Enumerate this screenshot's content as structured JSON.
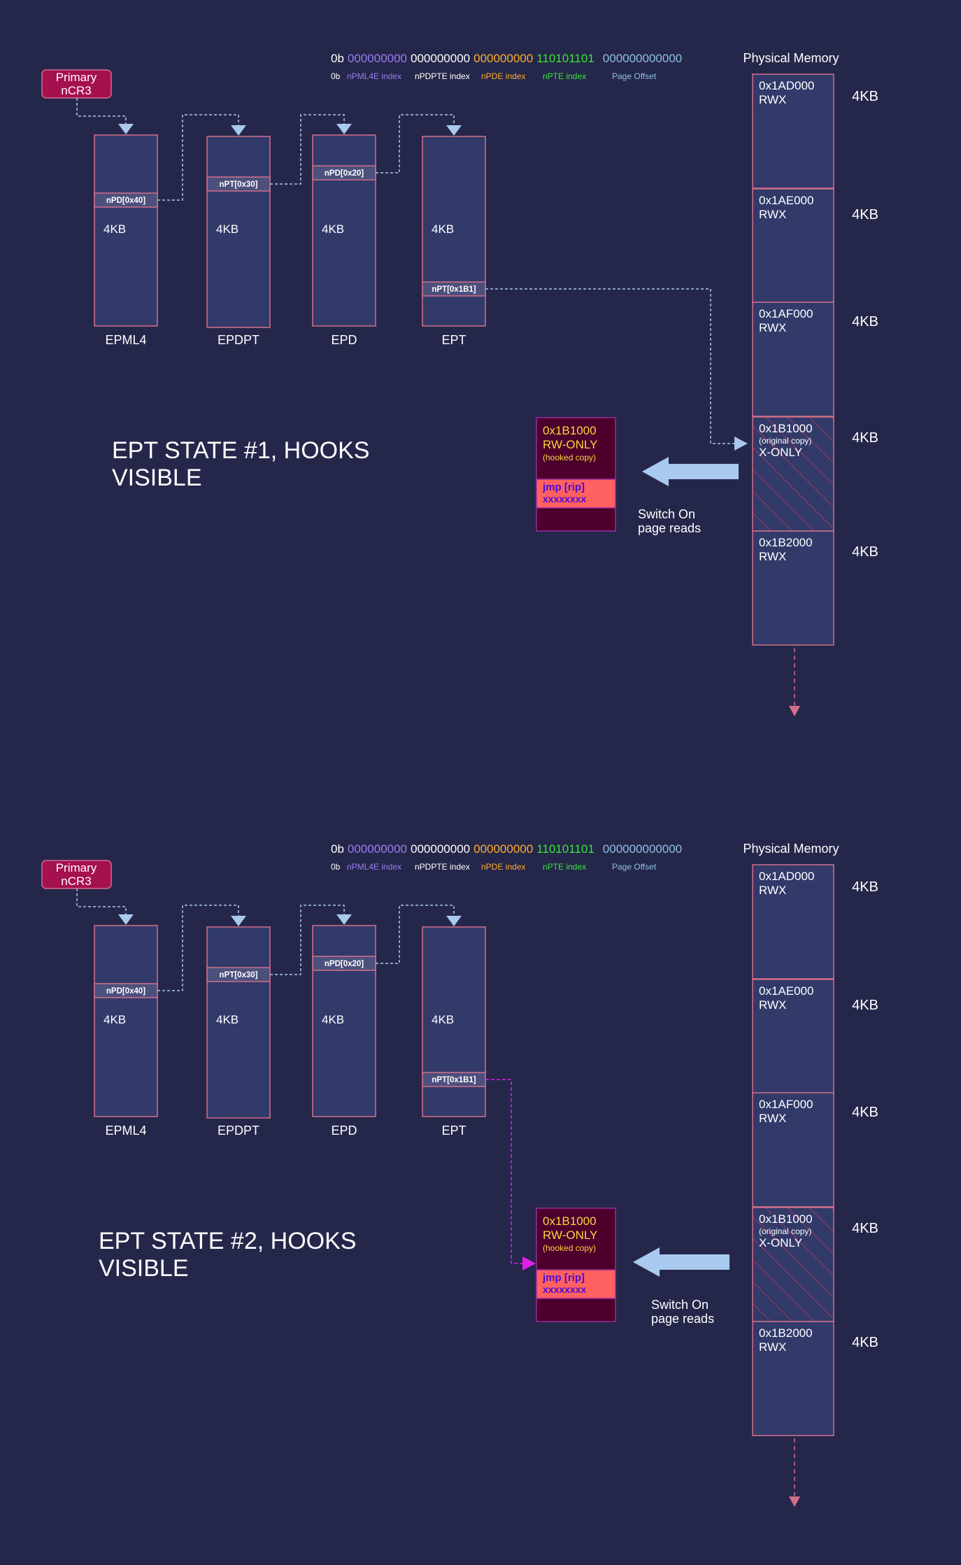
{
  "colors": {
    "background": "#25274a",
    "table_fill": "#323a6a",
    "table_border": "#d36f8b",
    "entry_fill": "#4c507c",
    "connector": "#a9c9ee",
    "hook_connector": "#e11fe6",
    "cr3_fill": "#a5104f",
    "hook_page_fill": "#4c002b",
    "hook_jmp_fill": "#ff6060",
    "hook_page_text": "#ffd23f",
    "jmp_text": "#4a0cd8",
    "pml4_color": "#9b7cf2",
    "pdpt_color": "#ffffff",
    "pd_color": "#ffad2f",
    "pt_color": "#3ce33c",
    "offset_color": "#8fbfe6",
    "hatch": "#c0344f"
  },
  "sections": [
    {
      "id": "state1",
      "title_line1": "EPT STATE #1, HOOKS",
      "title_line2": "VISIBLE",
      "cr3_line1": "Primary",
      "cr3_line2": "nCR3",
      "address": {
        "prefix": "0b",
        "pml4": "000000000",
        "pdpt": "000000000",
        "pd": "000000000",
        "pt": "110101101",
        "offset": "000000000000"
      },
      "address_legend": {
        "prefix": "0b",
        "pml4": "nPML4E index",
        "pdpt": "nPDPTE index",
        "pd": "nPDE index",
        "pt": "nPTE index",
        "offset": "Page Offset"
      },
      "tables": [
        {
          "name": "EPML4",
          "entry": "nPD[0x40]",
          "size": "4KB"
        },
        {
          "name": "EPDPT",
          "entry": "nPT[0x30]",
          "size": "4KB"
        },
        {
          "name": "EPD",
          "entry": "nPD[0x20]",
          "size": "4KB"
        },
        {
          "name": "EPT",
          "entry": "nPT[0x1B1]",
          "size": "4KB"
        }
      ],
      "memory_title": "Physical Memory",
      "pages": [
        {
          "addr": "0x1AD000",
          "note": "",
          "perm": "RWX",
          "size": "4KB"
        },
        {
          "addr": "0x1AE000",
          "note": "",
          "perm": "RWX",
          "size": "4KB"
        },
        {
          "addr": "0x1AF000",
          "note": "",
          "perm": "RWX",
          "size": "4KB"
        },
        {
          "addr": "0x1B1000",
          "note": "(original copy)",
          "perm": "X-ONLY",
          "size": "4KB"
        },
        {
          "addr": "0x1B2000",
          "note": "",
          "perm": "RWX",
          "size": "4KB"
        }
      ],
      "hook_page": {
        "addr": "0x1B1000",
        "perm": "RW-ONLY",
        "note": "(hooked copy)",
        "jmp": "jmp [rip]",
        "target": "xxxxxxxx"
      },
      "switch_line1": "Switch On",
      "switch_line2": "page reads"
    },
    {
      "id": "state2",
      "title_line1": "EPT STATE #2, HOOKS",
      "title_line2": "VISIBLE",
      "cr3_line1": "Primary",
      "cr3_line2": "nCR3",
      "address": {
        "prefix": "0b",
        "pml4": "000000000",
        "pdpt": "000000000",
        "pd": "000000000",
        "pt": "110101101",
        "offset": "000000000000"
      },
      "address_legend": {
        "prefix": "0b",
        "pml4": "nPML4E index",
        "pdpt": "nPDPTE index",
        "pd": "nPDE index",
        "pt": "nPTE index",
        "offset": "Page Offset"
      },
      "tables": [
        {
          "name": "EPML4",
          "entry": "nPD[0x40]",
          "size": "4KB"
        },
        {
          "name": "EPDPT",
          "entry": "nPT[0x30]",
          "size": "4KB"
        },
        {
          "name": "EPD",
          "entry": "nPD[0x20]",
          "size": "4KB"
        },
        {
          "name": "EPT",
          "entry": "nPT[0x1B1]",
          "size": "4KB"
        }
      ],
      "memory_title": "Physical Memory",
      "pages": [
        {
          "addr": "0x1AD000",
          "note": "",
          "perm": "RWX",
          "size": "4KB"
        },
        {
          "addr": "0x1AE000",
          "note": "",
          "perm": "RWX",
          "size": "4KB"
        },
        {
          "addr": "0x1AF000",
          "note": "",
          "perm": "RWX",
          "size": "4KB"
        },
        {
          "addr": "0x1B1000",
          "note": "(original copy)",
          "perm": "X-ONLY",
          "size": "4KB"
        },
        {
          "addr": "0x1B2000",
          "note": "",
          "perm": "RWX",
          "size": "4KB"
        }
      ],
      "hook_page": {
        "addr": "0x1B1000",
        "perm": "RW-ONLY",
        "note": "(hooked copy)",
        "jmp": "jmp [rip]",
        "target": "xxxxxxxx"
      },
      "switch_line1": "Switch On",
      "switch_line2": "page reads"
    }
  ]
}
